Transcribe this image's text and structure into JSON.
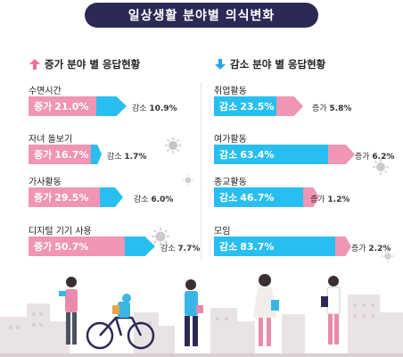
{
  "title": "일상생활 분야별 의식변화",
  "colors": {
    "pink": "#f095b6",
    "blue": "#28bff0",
    "navy": "#2b2a56",
    "arrow_pink": "#ef6f95",
    "arrow_blue": "#2ba4e8"
  },
  "left": {
    "header": "증가 분야 별 응답현황",
    "header_icon": "arrow-up-icon",
    "items": [
      {
        "label": "수면시간",
        "main": "증가",
        "main_value": "21.0%",
        "side": "감소",
        "side_value": "10.9%"
      },
      {
        "label": "자녀 돌보기",
        "main": "증가",
        "main_value": "16.7%",
        "side": "감소",
        "side_value": "1.7%"
      },
      {
        "label": "가사활동",
        "main": "증가",
        "main_value": "29.5%",
        "side": "감소",
        "side_value": "6.0%"
      },
      {
        "label": "디지털 기기 사용",
        "main": "증가",
        "main_value": "50.7%",
        "side": "감소",
        "side_value": "7.7%"
      }
    ]
  },
  "right": {
    "header": "감소 분야 별 응답현황",
    "header_icon": "arrow-down-icon",
    "items": [
      {
        "label": "취업활동",
        "main": "감소",
        "main_value": "23.5%",
        "side": "증가",
        "side_value": "5.8%"
      },
      {
        "label": "여가활동",
        "main": "감소",
        "main_value": "63.4%",
        "side": "증가",
        "side_value": "6.2%"
      },
      {
        "label": "종교활동",
        "main": "감소",
        "main_value": "46.7%",
        "side": "증가",
        "side_value": "1.2%"
      },
      {
        "label": "모임",
        "main": "감소",
        "main_value": "83.7%",
        "side": "증가",
        "side_value": "2.2%"
      }
    ]
  }
}
